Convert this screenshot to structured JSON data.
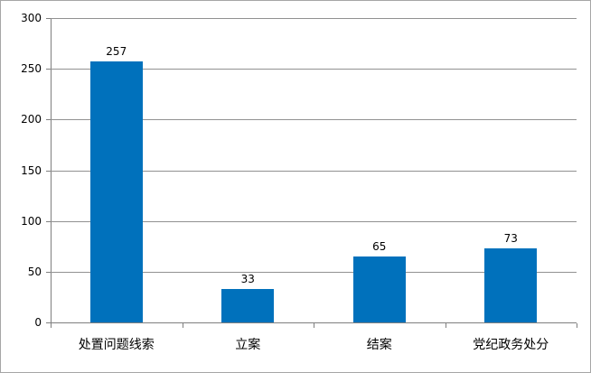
{
  "chart_data": {
    "type": "bar",
    "categories": [
      "处置问题线索",
      "立案",
      "结案",
      "党纪政务处分"
    ],
    "values": [
      257,
      33,
      65,
      73
    ],
    "title": "",
    "xlabel": "",
    "ylabel": "",
    "ylim": [
      0,
      300
    ],
    "yticks": [
      0,
      50,
      100,
      150,
      200,
      250,
      300
    ],
    "grid": true,
    "legend": "none",
    "data_labels_shown": true,
    "colors": {
      "bar": "#0071bc",
      "gridline": "#919191",
      "axis": "#7f7f7f",
      "border": "#a6a6a6",
      "text": "#000000",
      "background": "#ffffff"
    }
  }
}
